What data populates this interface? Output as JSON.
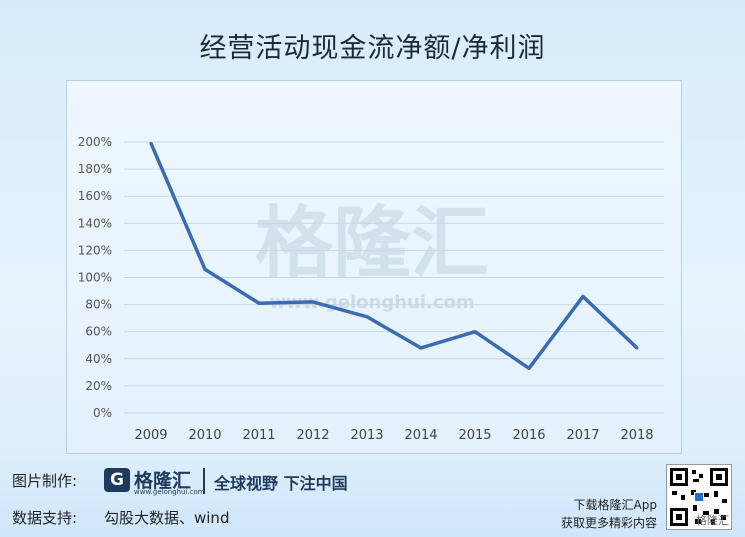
{
  "chart_data": {
    "type": "line",
    "title": "经营活动现金流净额/净利润",
    "x": [
      "2009",
      "2010",
      "2011",
      "2012",
      "2013",
      "2014",
      "2015",
      "2016",
      "2017",
      "2018"
    ],
    "values": [
      199,
      106,
      81,
      82,
      71,
      48,
      60,
      33,
      86,
      48
    ],
    "yticks": [
      "0%",
      "20%",
      "40%",
      "60%",
      "80%",
      "100%",
      "120%",
      "140%",
      "160%",
      "180%",
      "200%"
    ],
    "ylim": [
      0,
      200
    ],
    "grid": true,
    "line_color": "#3a6bb5"
  },
  "watermark": {
    "text": "格隆汇",
    "url": "www.gelonghui.com"
  },
  "footer": {
    "made_by_label": "图片制作:",
    "brand_name": "格隆汇",
    "brand_url": "www.gelonghui.com",
    "slogan": "全球视野 下注中国",
    "source_label": "数据支持:",
    "source_value": "勾股大数据、wind",
    "app_line1": "下载格隆汇App",
    "app_line2": "获取更多精彩内容",
    "qr_watermark": "格隆汇"
  }
}
